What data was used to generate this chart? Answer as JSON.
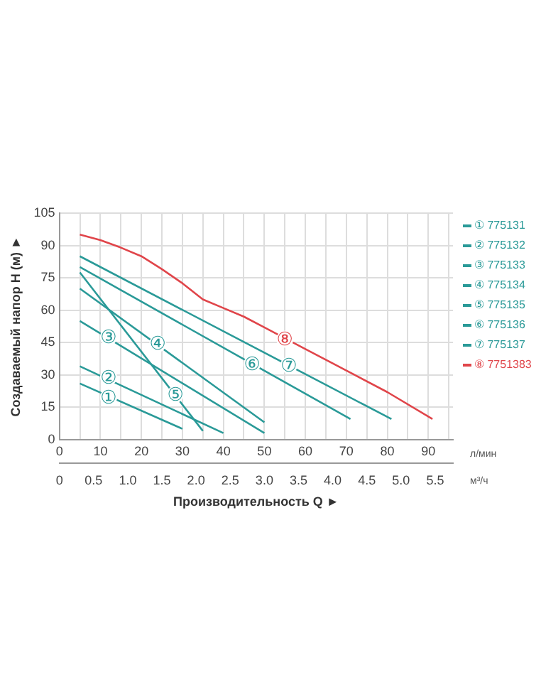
{
  "chart_data": {
    "type": "line",
    "ylabel": "Создаваемый напор H (м) ►",
    "xlabel": "л/мин",
    "x2label": "м³/ч",
    "xlim": [
      0,
      96
    ],
    "xticks": [
      0,
      {
        "value": 5,
        "label": null
      },
      10,
      {
        "value": 15,
        "label": null
      },
      20,
      {
        "value": 25,
        "label": null
      },
      30,
      {
        "value": 35,
        "label": null
      },
      40,
      {
        "value": 45,
        "label": null
      },
      50,
      {
        "value": 55,
        "label": null
      },
      60,
      {
        "value": 65,
        "label": null
      },
      70,
      {
        "value": 75,
        "label": null
      },
      80,
      {
        "value": 85,
        "label": null
      },
      90,
      {
        "value": 95,
        "label": null
      }
    ],
    "x2lim": [
      0,
      5.76
    ],
    "x2ticks": [
      0,
      0.5,
      {
        "value": 1,
        "label": "1.0"
      },
      1.5,
      {
        "value": 2,
        "label": "2.0"
      },
      2.5,
      {
        "value": 3,
        "label": "3.0"
      },
      3.5,
      {
        "value": 4,
        "label": "4.0"
      },
      4.5,
      {
        "value": 5,
        "label": "5.0"
      },
      5.5
    ],
    "ylim": [
      0,
      105
    ],
    "yticks": [
      0,
      15,
      30,
      45,
      60,
      75,
      90,
      105
    ],
    "grid": true,
    "legend": "right",
    "marker": "none",
    "line_style": "solid",
    "series": [
      {
        "name": "① 775131",
        "color": "#2a9a98",
        "x": [
          5,
          30
        ],
        "values": [
          26,
          5
        ]
      },
      {
        "name": "② 775132",
        "color": "#2a9a98",
        "x": [
          5,
          40
        ],
        "values": [
          34,
          3
        ]
      },
      {
        "name": "③ 775133",
        "color": "#2a9a98",
        "x": [
          5,
          50
        ],
        "values": [
          55,
          3
        ]
      },
      {
        "name": "④ 775134",
        "color": "#2a9a98",
        "x": [
          5,
          50
        ],
        "values": [
          70,
          8
        ]
      },
      {
        "name": "⑤ 775135",
        "color": "#2a9a98",
        "x": [
          5,
          35
        ],
        "values": [
          77.5,
          4
        ]
      },
      {
        "name": "⑥ 775136",
        "color": "#2a9a98",
        "x": [
          5,
          71
        ],
        "values": [
          80,
          9.5
        ]
      },
      {
        "name": "⑦ 775137",
        "color": "#2a9a98",
        "x": [
          5,
          81
        ],
        "values": [
          85,
          9.5
        ]
      },
      {
        "name": "⑧ 7751383",
        "color": "#e0454a",
        "x": [
          5,
          10,
          15,
          20,
          25,
          30,
          35,
          40,
          45,
          50,
          60,
          70,
          80,
          91
        ],
        "values": [
          95,
          92.5,
          89,
          85,
          79,
          72.5,
          65,
          61,
          57,
          52,
          42,
          32,
          22,
          9.5
        ]
      }
    ],
    "annotations": [
      {
        "text": "①",
        "x": 12,
        "y": 19.5
      },
      {
        "text": "②",
        "x": 12,
        "y": 29
      },
      {
        "text": "③",
        "x": 12,
        "y": 47.5
      },
      {
        "text": "④",
        "x": 24,
        "y": 44.5
      },
      {
        "text": "⑤",
        "x": 28.3,
        "y": 21
      },
      {
        "text": "⑥",
        "x": 47,
        "y": 35
      },
      {
        "text": "⑦",
        "x": 56,
        "y": 34.5
      },
      {
        "text": "⑧",
        "x": 55,
        "y": 46.5
      },
      "Производительность Q ►"
    ]
  }
}
